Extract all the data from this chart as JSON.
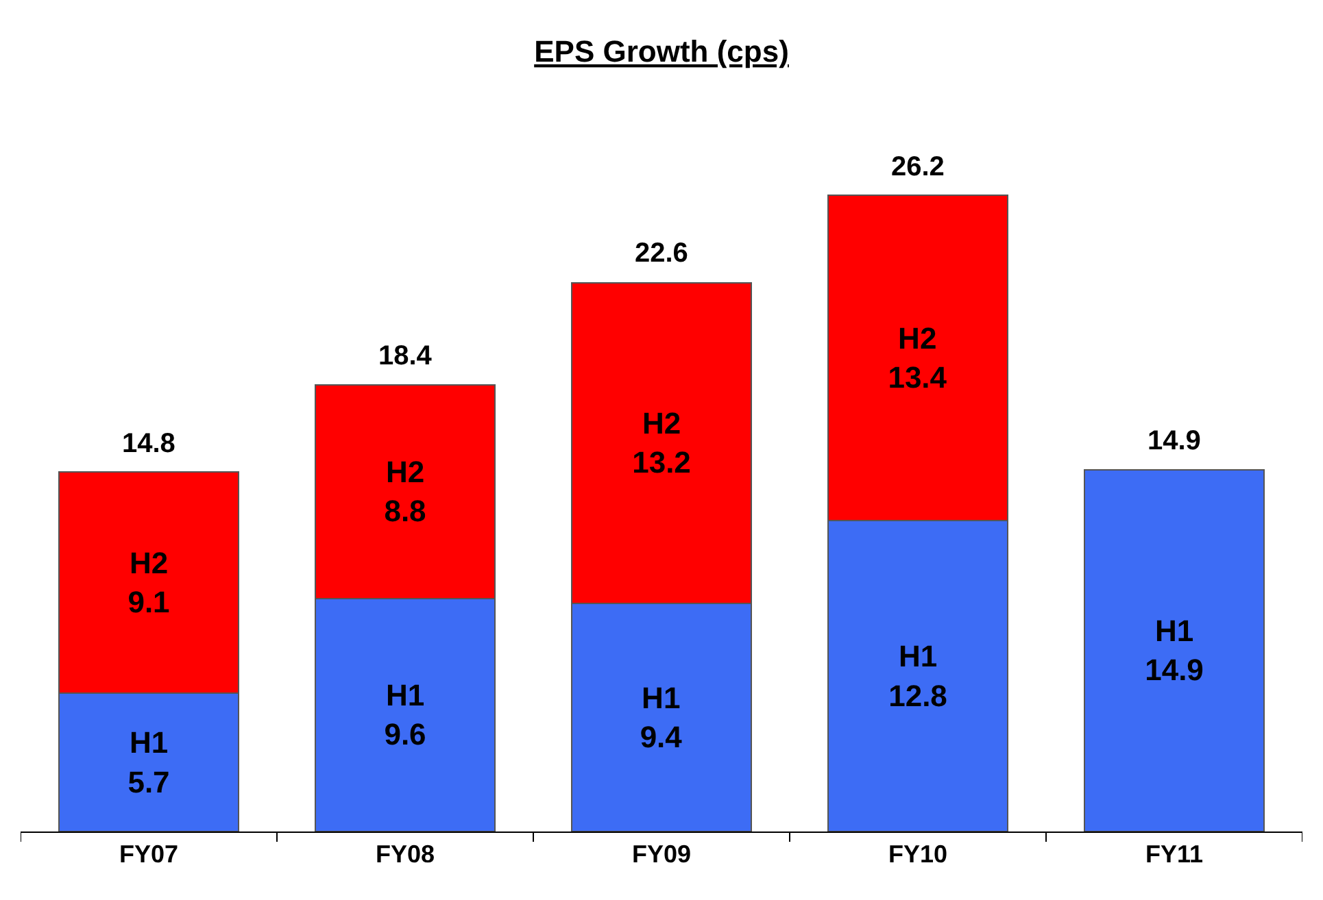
{
  "chart_data": {
    "type": "bar",
    "title": "EPS Growth (cps)",
    "stacked": true,
    "categories": [
      "FY07",
      "FY08",
      "FY09",
      "FY10",
      "FY11"
    ],
    "series": [
      {
        "name": "H1",
        "color": "#3d6cf5",
        "values": [
          5.7,
          9.6,
          9.4,
          12.8,
          14.9
        ]
      },
      {
        "name": "H2",
        "color": "#ff0000",
        "values": [
          9.1,
          8.8,
          13.2,
          13.4,
          null
        ]
      }
    ],
    "data_labels": true,
    "totals": [
      "14.8",
      "18.4",
      "22.6",
      "26.2",
      "14.9"
    ],
    "legend": false
  }
}
